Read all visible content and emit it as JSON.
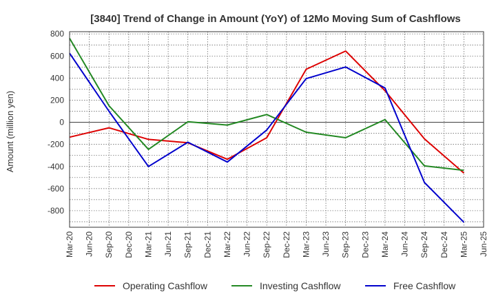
{
  "chart_data": {
    "type": "line",
    "title": "[3840]  Trend of Change in Amount (YoY) of 12Mo Moving Sum of Cashflows",
    "xlabel": "",
    "ylabel": "Amount (million yen)",
    "ylim": [
      -950,
      820
    ],
    "yticks": [
      800,
      600,
      400,
      200,
      0,
      -200,
      -400,
      -600,
      -800
    ],
    "categories": [
      "Mar-20",
      "Jun-20",
      "Sep-20",
      "Dec-20",
      "Mar-21",
      "Jun-21",
      "Sep-21",
      "Dec-21",
      "Mar-22",
      "Jun-22",
      "Sep-22",
      "Dec-22",
      "Mar-23",
      "Jun-23",
      "Sep-23",
      "Dec-23",
      "Mar-24",
      "Jun-24",
      "Sep-24",
      "Dec-24",
      "Mar-25",
      "Jun-25"
    ],
    "series": [
      {
        "name": "Operating Cashflow",
        "color": "#dd0000",
        "values": [
          -135,
          null,
          -50,
          null,
          -155,
          null,
          -185,
          null,
          -335,
          null,
          -140,
          null,
          480,
          null,
          645,
          null,
          285,
          null,
          -150,
          null,
          -460,
          null
        ]
      },
      {
        "name": "Investing Cashflow",
        "color": "#228822",
        "values": [
          760,
          null,
          150,
          null,
          -245,
          null,
          5,
          null,
          -25,
          null,
          70,
          null,
          -90,
          null,
          -140,
          null,
          25,
          null,
          -395,
          null,
          -435,
          null
        ]
      },
      {
        "name": "Free Cashflow",
        "color": "#0000cc",
        "values": [
          625,
          null,
          100,
          null,
          -400,
          null,
          -180,
          null,
          -360,
          null,
          -70,
          null,
          395,
          null,
          500,
          null,
          310,
          null,
          -545,
          null,
          -905,
          null
        ]
      }
    ]
  }
}
